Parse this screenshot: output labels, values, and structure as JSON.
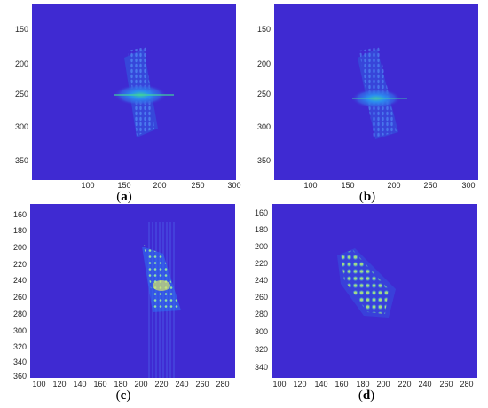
{
  "panels": [
    {
      "id": "a",
      "caption_open": "(",
      "caption_letter": "a",
      "caption_close": ")",
      "y_ticks": [
        "150",
        "200",
        "250",
        "300",
        "350"
      ],
      "x_ticks": [
        "100",
        "150",
        "200",
        "250",
        "300"
      ],
      "background": "#3f2ad2",
      "pattern": "blurred-fringes"
    },
    {
      "id": "b",
      "caption_open": "(",
      "caption_letter": "b",
      "caption_close": ")",
      "y_ticks": [
        "150",
        "200",
        "250",
        "300",
        "350"
      ],
      "x_ticks": [
        "100",
        "150",
        "200",
        "250",
        "300"
      ],
      "background": "#3f2ad2",
      "pattern": "blurred-fringes"
    },
    {
      "id": "c",
      "caption_open": "(",
      "caption_letter": "c",
      "caption_close": ")",
      "y_ticks": [
        "160",
        "180",
        "200",
        "220",
        "240",
        "260",
        "280",
        "300",
        "320",
        "340",
        "360"
      ],
      "x_ticks": [
        "100",
        "120",
        "140",
        "160",
        "180",
        "200",
        "220",
        "240",
        "260",
        "280"
      ],
      "background": "#3f2ad2",
      "pattern": "spot-array-streaks"
    },
    {
      "id": "d",
      "caption_open": "(",
      "caption_letter": "d",
      "caption_close": ")",
      "y_ticks": [
        "160",
        "180",
        "200",
        "220",
        "240",
        "260",
        "280",
        "300",
        "320",
        "340"
      ],
      "x_ticks": [
        "100",
        "120",
        "140",
        "160",
        "180",
        "200",
        "220",
        "240",
        "260",
        "280"
      ],
      "background": "#3f2ad2",
      "pattern": "sharp-spot-array"
    }
  ]
}
